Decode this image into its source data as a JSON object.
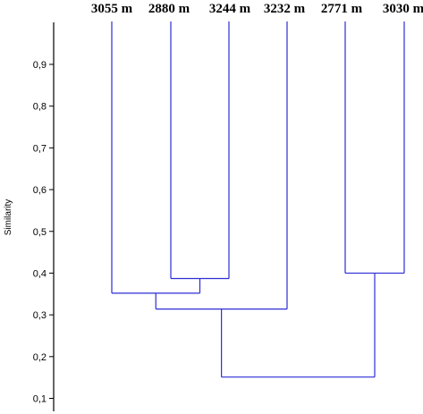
{
  "chart_data": {
    "type": "dendrogram",
    "ylabel": "Similarity",
    "ylim": [
      0.07,
      1.0
    ],
    "y_ticks": [
      "0,1",
      "0,2",
      "0,3",
      "0,4",
      "0,5",
      "0,6",
      "0,7",
      "0,8",
      "0,9"
    ],
    "y_tick_values": [
      0.1,
      0.2,
      0.3,
      0.4,
      0.5,
      0.6,
      0.7,
      0.8,
      0.9
    ],
    "leaves": [
      "3055 m",
      "2880 m",
      "3244 m",
      "3232 m",
      "2771 m",
      "3030 m"
    ],
    "merges": [
      {
        "left": "2880 m",
        "right": "3244 m",
        "similarity": 0.387
      },
      {
        "left": "2771 m",
        "right": "3030 m",
        "similarity": 0.4
      },
      {
        "left": "3055 m",
        "right": "2880 m + 3244 m",
        "similarity": 0.352
      },
      {
        "left": "3055 m + 2880 m + 3244 m",
        "right": "3232 m",
        "similarity": 0.314
      },
      {
        "left": "3055 m + 2880 m + 3244 m + 3232 m",
        "right": "2771 m + 3030 m",
        "similarity": 0.151
      }
    ],
    "line_color": "#2d2dd6"
  }
}
